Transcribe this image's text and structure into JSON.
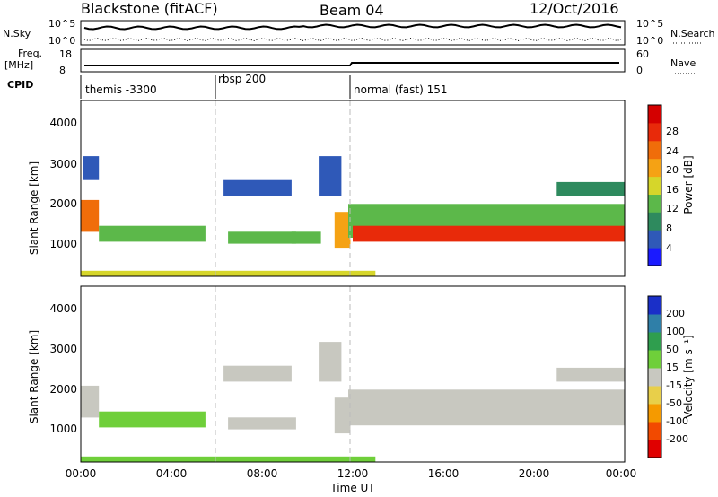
{
  "header": {
    "station": "Blackstone (fitACF)",
    "beam": "Beam 04",
    "date": "12/Oct/2016"
  },
  "top_panels": {
    "nsky": {
      "label": "N.Sky",
      "ticks": [
        "10^5",
        "10^0"
      ],
      "right_label": "N.Search",
      "right_ticks": [
        "10^5",
        "10^0"
      ]
    },
    "freq": {
      "label_line1": "Freq.",
      "label_line2": "[MHz]",
      "ticks": [
        "18",
        "8"
      ],
      "right_label": "Nave",
      "right_ticks": [
        "60",
        "0"
      ]
    },
    "cpid": {
      "label": "CPID",
      "modes": [
        "themis -3300",
        "rbsp 200",
        "normal (fast) 151"
      ]
    }
  },
  "panels": {
    "power": {
      "ylabel": "Slant Range [km]",
      "yticks": [
        "4000",
        "3000",
        "2000",
        "1000"
      ],
      "cbar_label": "Power [dB]",
      "cbar_ticks": [
        "28",
        "24",
        "20",
        "16",
        "12",
        "8",
        "4"
      ]
    },
    "velocity": {
      "ylabel": "Slant Range [km]",
      "yticks": [
        "4000",
        "3000",
        "2000",
        "1000"
      ],
      "cbar_label": "Velocity [m s⁻¹]",
      "cbar_ticks": [
        "200",
        "100",
        "50",
        "15",
        "-15",
        "-50",
        "-100",
        "-200"
      ]
    }
  },
  "xaxis": {
    "label": "Time UT",
    "ticks": [
      "00:00",
      "04:00",
      "08:00",
      "12:00",
      "16:00",
      "20:00",
      "00:00"
    ]
  },
  "colors": {
    "power_scale": [
      "#1a1aff",
      "#2f59b8",
      "#2e8a5e",
      "#5cb84a",
      "#d6d62a",
      "#f5a214",
      "#f06d0a",
      "#e82a0a",
      "#d40000"
    ],
    "velocity_scale": [
      "#e00000",
      "#f24a00",
      "#f59a00",
      "#e8cf4a",
      "#c8c8c0",
      "#6fcf3a",
      "#2f9e4e",
      "#2f7fa8",
      "#1a2fc8"
    ]
  },
  "chart_data": [
    {
      "type": "heatmap",
      "title": "Power",
      "xlabel": "Time UT",
      "ylabel": "Slant Range [km]",
      "xlim": [
        0,
        24
      ],
      "ylim": [
        180,
        4600
      ],
      "value_range": [
        0,
        30
      ],
      "regions": [
        {
          "t0": 0.1,
          "t1": 0.8,
          "r0": 2600,
          "r1": 3200,
          "value": 6
        },
        {
          "t0": 0.0,
          "t1": 0.8,
          "r0": 1300,
          "r1": 2100,
          "value": 20
        },
        {
          "t0": 0.8,
          "t1": 5.5,
          "r0": 1050,
          "r1": 1450,
          "value": 12
        },
        {
          "t0": 6.3,
          "t1": 9.3,
          "r0": 2200,
          "r1": 2600,
          "value": 6
        },
        {
          "t0": 6.5,
          "t1": 9.5,
          "r0": 1000,
          "r1": 1300,
          "value": 10
        },
        {
          "t0": 9.3,
          "t1": 10.6,
          "r0": 1000,
          "r1": 1300,
          "value": 13
        },
        {
          "t0": 10.5,
          "t1": 11.5,
          "r0": 2200,
          "r1": 3200,
          "value": 6
        },
        {
          "t0": 11.2,
          "t1": 11.9,
          "r0": 900,
          "r1": 1800,
          "value": 18
        },
        {
          "t0": 11.8,
          "t1": 24.0,
          "r0": 1150,
          "r1": 2000,
          "value": 12
        },
        {
          "t0": 12.0,
          "t1": 24.0,
          "r0": 1050,
          "r1": 1450,
          "value": 26
        },
        {
          "t0": 21.0,
          "t1": 24.0,
          "r0": 2200,
          "r1": 2550,
          "value": 7
        },
        {
          "t0": 0.0,
          "t1": 13.0,
          "r0": 180,
          "r1": 320,
          "value": 14
        }
      ]
    },
    {
      "type": "heatmap",
      "title": "Velocity",
      "xlabel": "Time UT",
      "ylabel": "Slant Range [km]",
      "xlim": [
        0,
        24
      ],
      "ylim": [
        180,
        4600
      ],
      "value_range": [
        -250,
        250
      ],
      "regions": [
        {
          "t0": 0.0,
          "t1": 0.8,
          "r0": 1300,
          "r1": 2100,
          "value": 0
        },
        {
          "t0": 0.8,
          "t1": 5.5,
          "r0": 1050,
          "r1": 1450,
          "value": 30
        },
        {
          "t0": 6.3,
          "t1": 9.3,
          "r0": 2200,
          "r1": 2600,
          "value": 0
        },
        {
          "t0": 6.5,
          "t1": 9.5,
          "r0": 1000,
          "r1": 1300,
          "value": 0
        },
        {
          "t0": 10.5,
          "t1": 11.5,
          "r0": 2200,
          "r1": 3200,
          "value": 0
        },
        {
          "t0": 11.2,
          "t1": 11.9,
          "r0": 900,
          "r1": 1800,
          "value": 20
        },
        {
          "t0": 11.8,
          "t1": 24.0,
          "r0": 1100,
          "r1": 2000,
          "value": 0
        },
        {
          "t0": 21.0,
          "t1": 24.0,
          "r0": 2200,
          "r1": 2550,
          "value": 0
        },
        {
          "t0": 0.0,
          "t1": 13.0,
          "r0": 180,
          "r1": 320,
          "value": 40
        }
      ]
    }
  ]
}
